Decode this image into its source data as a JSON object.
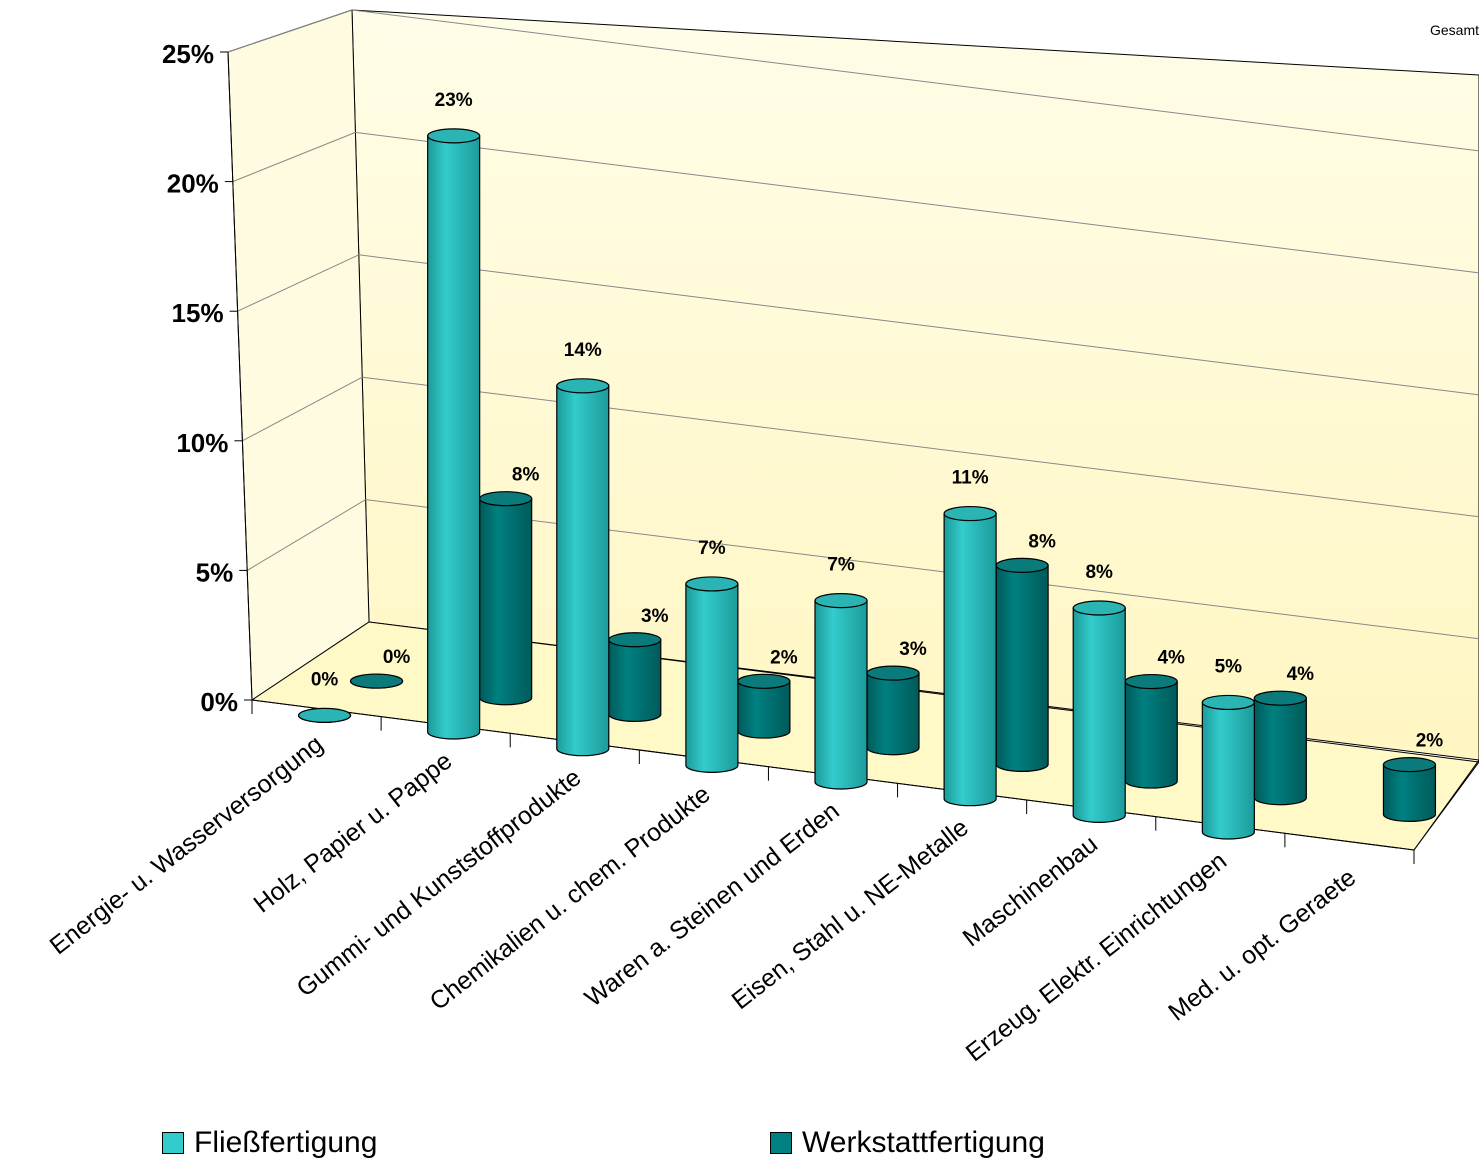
{
  "corner_title": "Gesamt",
  "colors": {
    "fliess": "#33CCCC",
    "fliess_dark": "#1d9a9a",
    "werkstatt": "#008080",
    "werkstatt_dark": "#005a5a",
    "wall": "#fffde8",
    "floor": "#fff9c8"
  },
  "chart_data": {
    "type": "bar",
    "style": "3d-cylinder",
    "categories": [
      "Energie- u. Wasserversorgung",
      "Holz, Papier u. Pappe",
      "Gummi- und Kunststoffprodukte",
      "Chemikalien u. chem. Produkte",
      "Waren a. Steinen und Erden",
      "Eisen, Stahl u. NE-Metalle",
      "Maschinenbau",
      "Erzeug. Elektr. Einrichtungen",
      "Med. u. opt. Geraete"
    ],
    "series": [
      {
        "name": "Fließfertigung",
        "values": [
          0,
          23,
          14,
          7,
          7,
          11,
          8,
          5,
          null
        ],
        "labels": [
          "0%",
          "23%",
          "14%",
          "7%",
          "7%",
          "11%",
          "8%",
          "5%",
          ""
        ]
      },
      {
        "name": "Werkstattfertigung",
        "values": [
          0,
          8,
          3,
          2,
          3,
          8,
          4,
          4,
          2
        ],
        "labels": [
          "0%",
          "8%",
          "3%",
          "2%",
          "3%",
          "8%",
          "4%",
          "4%",
          "2%"
        ]
      }
    ],
    "y_ticks": [
      "0%",
      "5%",
      "10%",
      "15%",
      "20%",
      "25%"
    ],
    "ylim": [
      0,
      25
    ],
    "grid": true,
    "legend": "bottom"
  }
}
